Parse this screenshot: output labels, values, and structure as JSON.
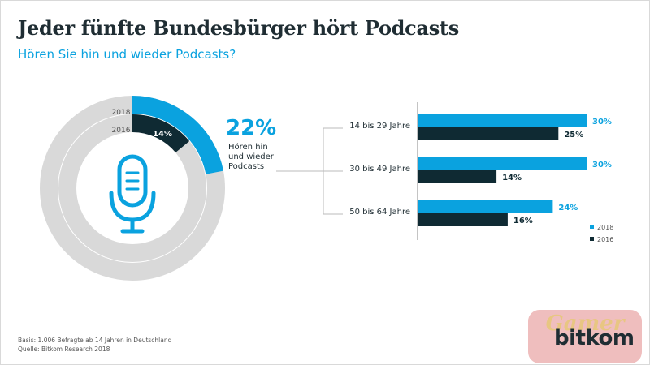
{
  "header": {
    "title": "Jeder fünfte Bundesbürger hört Podcasts",
    "subtitle": "Hören Sie hin und wieder Podcasts?"
  },
  "donut": {
    "outer_year": "2018",
    "inner_year": "2016",
    "outer_percent_label": "22%",
    "inner_percent_label": "14%",
    "caption": [
      "Hören hin",
      "und wieder",
      "Podcasts"
    ],
    "icon": "microphone-icon"
  },
  "chart_data": [
    {
      "type": "pie",
      "series": [
        {
          "name": "2018",
          "values": [
            22
          ]
        },
        {
          "name": "2016",
          "values": [
            14
          ]
        }
      ],
      "labels": [
        "Hören hin und wieder Podcasts"
      ]
    },
    {
      "type": "bar",
      "orientation": "horizontal",
      "categories": [
        "14 bis 29 Jahre",
        "30 bis 49 Jahre",
        "50 bis 64 Jahre"
      ],
      "series": [
        {
          "name": "2018",
          "values": [
            30,
            30,
            24
          ],
          "labels": [
            "30%",
            "30%",
            "24%"
          ]
        },
        {
          "name": "2016",
          "values": [
            25,
            14,
            16
          ],
          "labels": [
            "25%",
            "14%",
            "16%"
          ]
        }
      ],
      "xlim": [
        0,
        30
      ],
      "legend": "bottom-right"
    }
  ],
  "colors": {
    "series_2018": "#0aa2df",
    "series_2016": "#0f2a33",
    "ring_bg": "#d9d9d9",
    "accent": "#0aa2df",
    "text_dark": "#1f2d33"
  },
  "footnote": {
    "line1": "Basis: 1.006 Befragte ab 14 Jahren in Deutschland",
    "line2": "Quelle: Bitkom Research 2018"
  },
  "brand": {
    "logo_text": "bitkom",
    "watermark_text": "Gamer"
  }
}
